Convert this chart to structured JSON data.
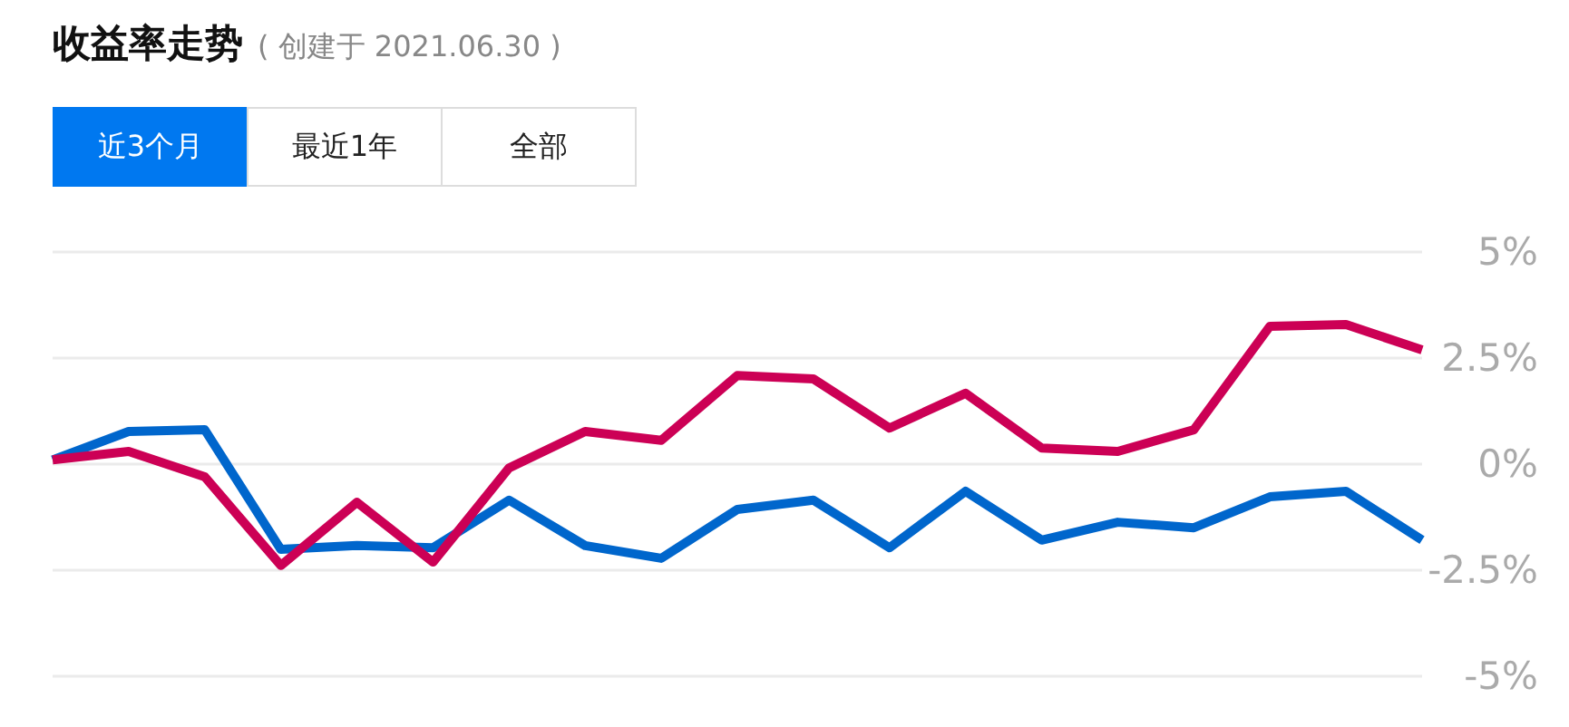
{
  "chart_data": {
    "type": "line",
    "title": "收益率走势",
    "subtitle": "( 创建于 2021.06.30 )",
    "annotations": [
      "近3个月",
      "最近1年",
      "全部"
    ],
    "categories": [
      null,
      null,
      null,
      null,
      null,
      null,
      null,
      null,
      null,
      null,
      null,
      null,
      null,
      null,
      null,
      null,
      null,
      null,
      null
    ],
    "series": [
      {
        "color": "#0066cc",
        "values": [
          0.1,
          0.77,
          0.81,
          -2.01,
          -1.92,
          -1.97,
          -0.85,
          -1.92,
          -2.22,
          -1.07,
          -0.85,
          -1.97,
          -0.64,
          -1.79,
          -1.37,
          -1.5,
          -0.77,
          -0.64,
          -1.79
        ]
      },
      {
        "color": "#cc0055",
        "values": [
          0.1,
          0.3,
          -0.3,
          -2.39,
          -0.9,
          -2.31,
          -0.09,
          0.77,
          0.56,
          2.09,
          2.01,
          0.85,
          1.67,
          0.38,
          0.3,
          0.81,
          3.25,
          3.29,
          2.69
        ]
      }
    ],
    "ylim": [
      -5,
      5
    ],
    "yticks": [
      {
        "value": 5,
        "label": "5%"
      },
      {
        "value": 2.5,
        "label": "2.5%"
      },
      {
        "value": 0,
        "label": "0%"
      },
      {
        "value": -2.5,
        "label": "-2.5%"
      },
      {
        "value": -5,
        "label": "-5%"
      }
    ],
    "grid": "y",
    "marker": "none",
    "line_style": "solid",
    "tick_labels": "y"
  }
}
